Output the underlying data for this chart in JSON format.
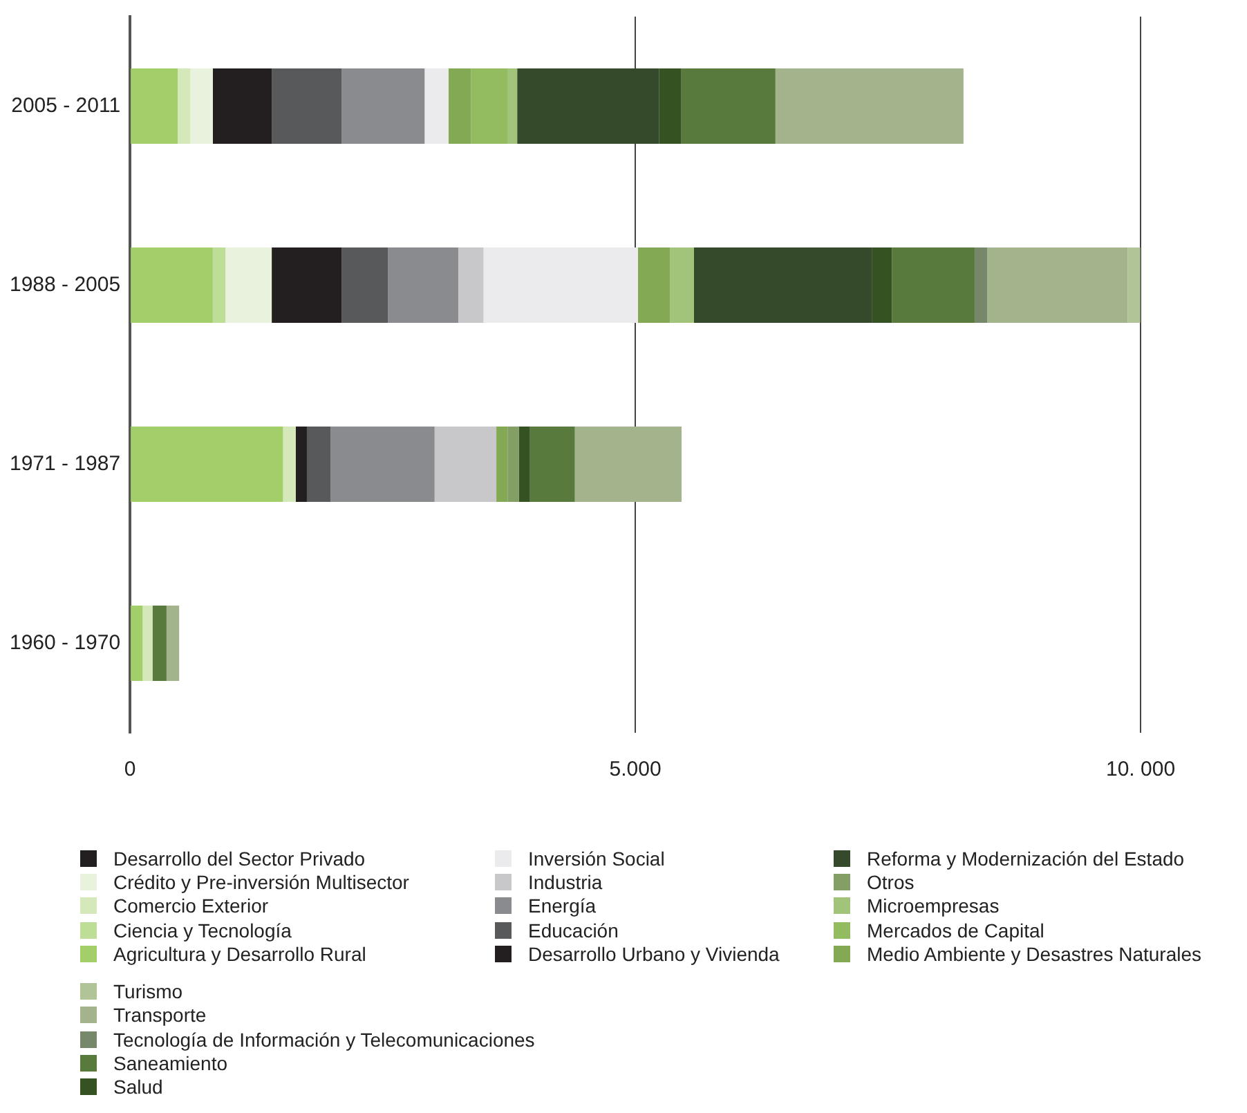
{
  "chart_data": {
    "type": "bar",
    "orientation": "horizontal",
    "stacked": true,
    "categories": [
      "2005 - 2011",
      "1988 - 2005",
      "1971 - 1987",
      "1960 - 1970"
    ],
    "xlim": [
      0,
      10000
    ],
    "xticks": [
      0,
      {
        "value": 5000,
        "label": "5.000"
      },
      {
        "value": 10000,
        "label": "10. 000"
      }
    ],
    "grid": "x",
    "legend": "bottom",
    "series": [
      {
        "name": "Agricultura y Desarrollo Rural",
        "color": "#a2cf69",
        "values": [
          472,
          819,
          1514,
          125
        ]
      },
      {
        "name": "Ciencia y Tecnología",
        "color": "#bede98",
        "values": [
          null,
          125,
          null,
          null
        ]
      },
      {
        "name": "Comercio Exterior",
        "color": "#d5e8b9",
        "values": [
          125,
          null,
          125,
          97
        ]
      },
      {
        "name": "Crédito y Pre-inversión Multisector",
        "color": "#e8f2dc",
        "values": [
          222,
          458,
          null,
          null
        ]
      },
      {
        "name": "Desarrollo del Sector Privado",
        "color": "#231f20",
        "values": [
          583,
          694,
          111,
          null
        ]
      },
      {
        "name": "Desarrollo Urbano y Vivienda",
        "color": "#231f20",
        "values": [
          null,
          null,
          null,
          null
        ]
      },
      {
        "name": "Educación",
        "color": "#58595b",
        "values": [
          694,
          458,
          236,
          null
        ]
      },
      {
        "name": "Energía",
        "color": "#8a8b8e",
        "values": [
          819,
          694,
          1028,
          null
        ]
      },
      {
        "name": "Industria",
        "color": "#c8c8ca",
        "values": [
          null,
          250,
          611,
          null
        ]
      },
      {
        "name": "Inversión Social",
        "color": "#ebebed",
        "values": [
          236,
          1528,
          null,
          null
        ]
      },
      {
        "name": "Medio Ambiente y Desastres Naturales",
        "color": "#83a955",
        "values": [
          222,
          319,
          111,
          null
        ]
      },
      {
        "name": "Mercados de Capital",
        "color": "#93bb5f",
        "values": [
          361,
          null,
          null,
          null
        ]
      },
      {
        "name": "Microempresas",
        "color": "#a2c47a",
        "values": [
          97,
          236,
          null,
          null
        ]
      },
      {
        "name": "Otros",
        "color": "#849f65",
        "values": [
          null,
          null,
          111,
          null
        ]
      },
      {
        "name": "Reforma y Modernización del Estado",
        "color": "#344a2a",
        "values": [
          1403,
          1764,
          null,
          null
        ]
      },
      {
        "name": "Salud",
        "color": "#355222",
        "values": [
          222,
          194,
          111,
          null
        ]
      },
      {
        "name": "Saneamiento",
        "color": "#587b3d",
        "values": [
          931,
          819,
          444,
          139
        ]
      },
      {
        "name": "Tecnología de Información y Telecomunicaciones",
        "color": "#77886a",
        "values": [
          null,
          125,
          null,
          null
        ]
      },
      {
        "name": "Transporte",
        "color": "#a3b48c",
        "values": [
          1861,
          1389,
          1056,
          125
        ]
      },
      {
        "name": "Turismo",
        "color": "#b1c497",
        "values": [
          null,
          125,
          null,
          null
        ]
      }
    ]
  }
}
